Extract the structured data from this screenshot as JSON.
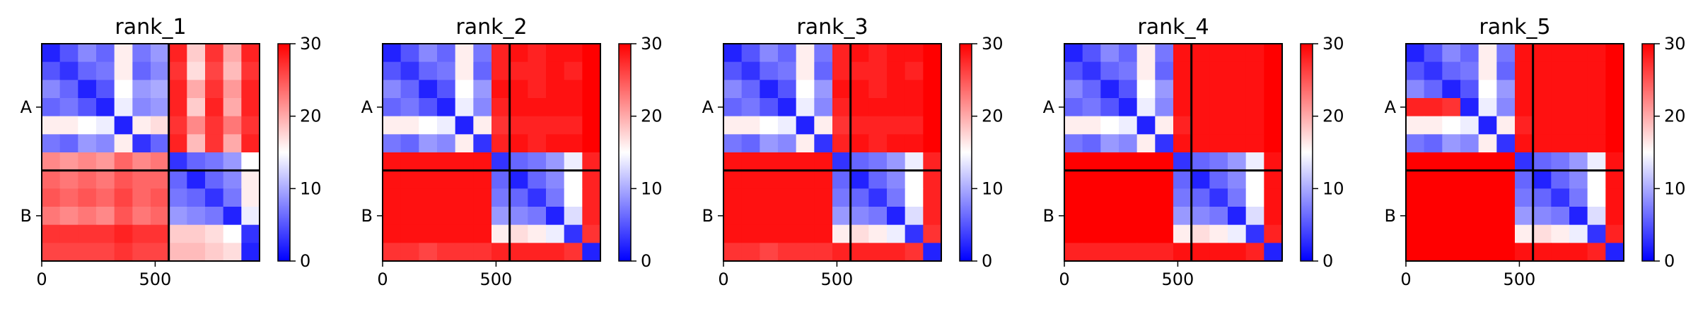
{
  "chart_data": [
    {
      "type": "heatmap",
      "title": "rank_1",
      "colormap": {
        "low": "#0000ff",
        "mid": "#ffffff",
        "high": "#ff0000"
      },
      "value_range": [
        0,
        30
      ],
      "colorbar_ticks": [
        "0",
        "10",
        "20",
        "30"
      ],
      "x_ticks": [
        "0",
        "500"
      ],
      "x_tick_values": [
        0,
        500
      ],
      "y_ticks": [
        "A",
        "B"
      ],
      "x_range": [
        0,
        960
      ],
      "chain_boundary": 560,
      "matrix": [
        [
          2,
          5,
          8,
          6,
          16,
          7,
          9,
          28,
          18,
          27,
          20,
          28
        ],
        [
          5,
          3,
          6,
          7,
          16,
          6,
          8,
          27,
          17,
          26,
          19,
          27
        ],
        [
          8,
          6,
          2,
          5,
          15,
          9,
          10,
          28,
          20,
          27,
          21,
          28
        ],
        [
          6,
          7,
          5,
          2,
          14,
          8,
          9,
          28,
          18,
          28,
          20,
          28
        ],
        [
          16,
          16,
          15,
          14,
          2,
          16,
          17,
          27,
          22,
          27,
          23,
          27
        ],
        [
          7,
          6,
          9,
          8,
          16,
          3,
          6,
          28,
          19,
          27,
          20,
          28
        ],
        [
          22,
          21,
          22,
          21,
          24,
          22,
          23,
          3,
          6,
          7,
          9,
          15
        ],
        [
          24,
          23,
          24,
          23,
          25,
          24,
          24,
          6,
          2,
          6,
          8,
          16
        ],
        [
          25,
          24,
          25,
          24,
          26,
          24,
          25,
          7,
          6,
          3,
          7,
          16
        ],
        [
          23,
          22,
          23,
          22,
          25,
          23,
          24,
          9,
          8,
          7,
          2,
          14
        ],
        [
          27,
          27,
          27,
          27,
          28,
          27,
          27,
          18,
          18,
          17,
          15,
          3
        ],
        [
          26,
          26,
          26,
          26,
          27,
          26,
          26,
          19,
          19,
          18,
          17,
          2
        ]
      ]
    },
    {
      "type": "heatmap",
      "title": "rank_2",
      "colormap": {
        "low": "#0000ff",
        "mid": "#ffffff",
        "high": "#ff0000"
      },
      "value_range": [
        0,
        30
      ],
      "colorbar_ticks": [
        "0",
        "10",
        "20",
        "30"
      ],
      "x_ticks": [
        "0",
        "500"
      ],
      "x_tick_values": [
        0,
        500
      ],
      "y_ticks": [
        "A",
        "B"
      ],
      "x_range": [
        0,
        960
      ],
      "chain_boundary": 560,
      "matrix": [
        [
          2,
          5,
          8,
          6,
          16,
          7,
          28,
          29,
          28,
          29,
          29,
          30
        ],
        [
          5,
          3,
          6,
          7,
          16,
          6,
          28,
          28,
          28,
          29,
          28,
          30
        ],
        [
          8,
          6,
          2,
          5,
          15,
          9,
          29,
          29,
          28,
          29,
          29,
          30
        ],
        [
          6,
          7,
          5,
          2,
          14,
          8,
          28,
          29,
          29,
          29,
          29,
          30
        ],
        [
          16,
          16,
          15,
          14,
          2,
          16,
          27,
          28,
          28,
          28,
          28,
          30
        ],
        [
          7,
          6,
          9,
          8,
          16,
          3,
          28,
          29,
          28,
          29,
          29,
          30
        ],
        [
          29,
          29,
          29,
          29,
          29,
          29,
          3,
          6,
          7,
          9,
          14,
          28
        ],
        [
          29,
          29,
          29,
          29,
          29,
          29,
          6,
          2,
          6,
          8,
          15,
          28
        ],
        [
          29,
          29,
          29,
          29,
          29,
          29,
          7,
          6,
          3,
          7,
          15,
          28
        ],
        [
          29,
          29,
          29,
          29,
          29,
          29,
          9,
          8,
          7,
          2,
          13,
          28
        ],
        [
          29,
          29,
          29,
          29,
          29,
          29,
          16,
          17,
          16,
          14,
          3,
          27
        ],
        [
          27,
          27,
          26,
          27,
          27,
          27,
          28,
          28,
          28,
          28,
          27,
          2
        ]
      ]
    },
    {
      "type": "heatmap",
      "title": "rank_3",
      "colormap": {
        "low": "#0000ff",
        "mid": "#ffffff",
        "high": "#ff0000"
      },
      "value_range": [
        0,
        30
      ],
      "colorbar_ticks": [
        "0",
        "10",
        "20",
        "30"
      ],
      "x_ticks": [
        "0",
        "500"
      ],
      "x_tick_values": [
        0,
        500
      ],
      "y_ticks": [
        "A",
        "B"
      ],
      "x_range": [
        0,
        960
      ],
      "chain_boundary": 560,
      "matrix": [
        [
          2,
          5,
          8,
          6,
          16,
          7,
          28,
          29,
          28,
          29,
          29,
          30
        ],
        [
          5,
          3,
          6,
          7,
          16,
          6,
          28,
          28,
          28,
          29,
          28,
          30
        ],
        [
          8,
          6,
          2,
          5,
          15,
          9,
          29,
          29,
          28,
          29,
          29,
          30
        ],
        [
          6,
          7,
          5,
          2,
          14,
          8,
          28,
          29,
          29,
          29,
          29,
          30
        ],
        [
          16,
          16,
          15,
          14,
          2,
          16,
          27,
          28,
          28,
          28,
          28,
          30
        ],
        [
          7,
          6,
          9,
          8,
          16,
          3,
          28,
          29,
          28,
          29,
          29,
          30
        ],
        [
          29,
          29,
          29,
          29,
          29,
          29,
          3,
          6,
          7,
          9,
          14,
          28
        ],
        [
          29,
          29,
          29,
          29,
          29,
          29,
          6,
          2,
          6,
          8,
          15,
          28
        ],
        [
          29,
          29,
          29,
          29,
          29,
          29,
          7,
          6,
          3,
          7,
          15,
          28
        ],
        [
          29,
          29,
          29,
          29,
          29,
          29,
          9,
          8,
          7,
          2,
          13,
          28
        ],
        [
          29,
          29,
          29,
          29,
          29,
          29,
          16,
          17,
          16,
          14,
          3,
          27
        ],
        [
          27,
          27,
          26,
          27,
          27,
          27,
          28,
          28,
          28,
          28,
          27,
          2
        ]
      ]
    },
    {
      "type": "heatmap",
      "title": "rank_4",
      "colormap": {
        "low": "#0000ff",
        "mid": "#ffffff",
        "high": "#ff0000"
      },
      "value_range": [
        0,
        30
      ],
      "colorbar_ticks": [
        "0",
        "10",
        "20",
        "30"
      ],
      "x_ticks": [
        "0",
        "500"
      ],
      "x_tick_values": [
        0,
        500
      ],
      "y_ticks": [
        "A",
        "B"
      ],
      "x_range": [
        0,
        960
      ],
      "chain_boundary": 560,
      "matrix": [
        [
          2,
          5,
          8,
          6,
          16,
          7,
          29,
          29,
          29,
          29,
          29,
          30
        ],
        [
          5,
          3,
          6,
          7,
          16,
          6,
          29,
          29,
          29,
          29,
          29,
          30
        ],
        [
          8,
          6,
          2,
          5,
          15,
          9,
          29,
          29,
          29,
          29,
          29,
          30
        ],
        [
          6,
          7,
          5,
          2,
          14,
          8,
          29,
          29,
          29,
          29,
          29,
          30
        ],
        [
          16,
          16,
          15,
          14,
          2,
          16,
          28,
          29,
          29,
          29,
          29,
          30
        ],
        [
          7,
          6,
          9,
          8,
          16,
          3,
          29,
          29,
          29,
          29,
          29,
          30
        ],
        [
          30,
          30,
          30,
          30,
          30,
          30,
          3,
          6,
          7,
          9,
          14,
          29
        ],
        [
          30,
          30,
          30,
          30,
          30,
          30,
          6,
          2,
          6,
          8,
          15,
          29
        ],
        [
          30,
          30,
          30,
          30,
          30,
          30,
          7,
          6,
          3,
          7,
          15,
          29
        ],
        [
          30,
          30,
          30,
          30,
          30,
          30,
          9,
          8,
          7,
          2,
          13,
          29
        ],
        [
          30,
          30,
          30,
          30,
          30,
          30,
          16,
          17,
          16,
          14,
          3,
          28
        ],
        [
          28,
          28,
          28,
          28,
          28,
          28,
          29,
          29,
          29,
          29,
          28,
          2
        ]
      ]
    },
    {
      "type": "heatmap",
      "title": "rank_5",
      "colormap": {
        "low": "#0000ff",
        "mid": "#ffffff",
        "high": "#ff0000"
      },
      "value_range": [
        0,
        30
      ],
      "colorbar_ticks": [
        "0",
        "10",
        "20",
        "30"
      ],
      "x_ticks": [
        "0",
        "500"
      ],
      "x_tick_values": [
        0,
        500
      ],
      "y_ticks": [
        "A",
        "B"
      ],
      "x_range": [
        0,
        960
      ],
      "chain_boundary": 560,
      "matrix": [
        [
          2,
          5,
          8,
          6,
          16,
          7,
          29,
          29,
          29,
          29,
          29,
          30
        ],
        [
          5,
          3,
          6,
          7,
          16,
          6,
          29,
          29,
          29,
          29,
          29,
          30
        ],
        [
          8,
          6,
          2,
          5,
          15,
          9,
          29,
          29,
          29,
          29,
          29,
          30
        ],
        [
          28,
          28,
          27,
          2,
          14,
          8,
          29,
          29,
          29,
          29,
          29,
          30
        ],
        [
          16,
          16,
          15,
          14,
          2,
          16,
          28,
          29,
          29,
          29,
          29,
          30
        ],
        [
          7,
          6,
          9,
          8,
          16,
          3,
          29,
          29,
          29,
          29,
          29,
          30
        ],
        [
          30,
          30,
          30,
          30,
          30,
          30,
          3,
          6,
          7,
          9,
          14,
          29
        ],
        [
          30,
          30,
          30,
          30,
          30,
          30,
          6,
          2,
          6,
          8,
          15,
          29
        ],
        [
          30,
          30,
          30,
          30,
          30,
          30,
          7,
          6,
          3,
          7,
          15,
          29
        ],
        [
          30,
          30,
          30,
          30,
          30,
          30,
          9,
          8,
          7,
          2,
          13,
          29
        ],
        [
          30,
          30,
          30,
          30,
          30,
          30,
          16,
          17,
          16,
          14,
          3,
          28
        ],
        [
          30,
          30,
          30,
          30,
          30,
          30,
          29,
          29,
          29,
          29,
          28,
          2
        ]
      ]
    }
  ]
}
